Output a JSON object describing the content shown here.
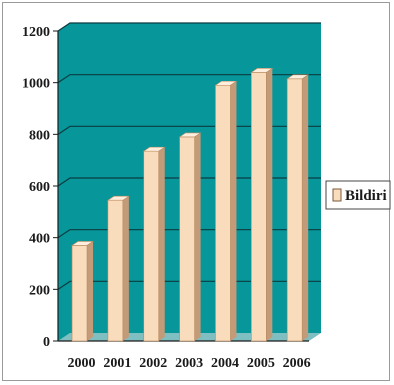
{
  "chart_data": {
    "type": "bar",
    "categories": [
      "2000",
      "2001",
      "2002",
      "2003",
      "2004",
      "2005",
      "2006"
    ],
    "series": [
      {
        "name": "Bildiri",
        "values": [
          370,
          545,
          735,
          790,
          990,
          1040,
          1015
        ]
      }
    ],
    "ylim": [
      0,
      1200
    ],
    "yticks": [
      0,
      200,
      400,
      600,
      800,
      1000,
      1200
    ],
    "grid": true,
    "legend": "right",
    "style": "3d-column",
    "colors": {
      "wall": "#07969a",
      "floor": "#7fbfc1",
      "bar_front": "#f9dcbc",
      "bar_top": "#fdeedd",
      "bar_side": "#c49b78",
      "grid": "#0a3c40",
      "axis": "#1a1a1a"
    }
  }
}
